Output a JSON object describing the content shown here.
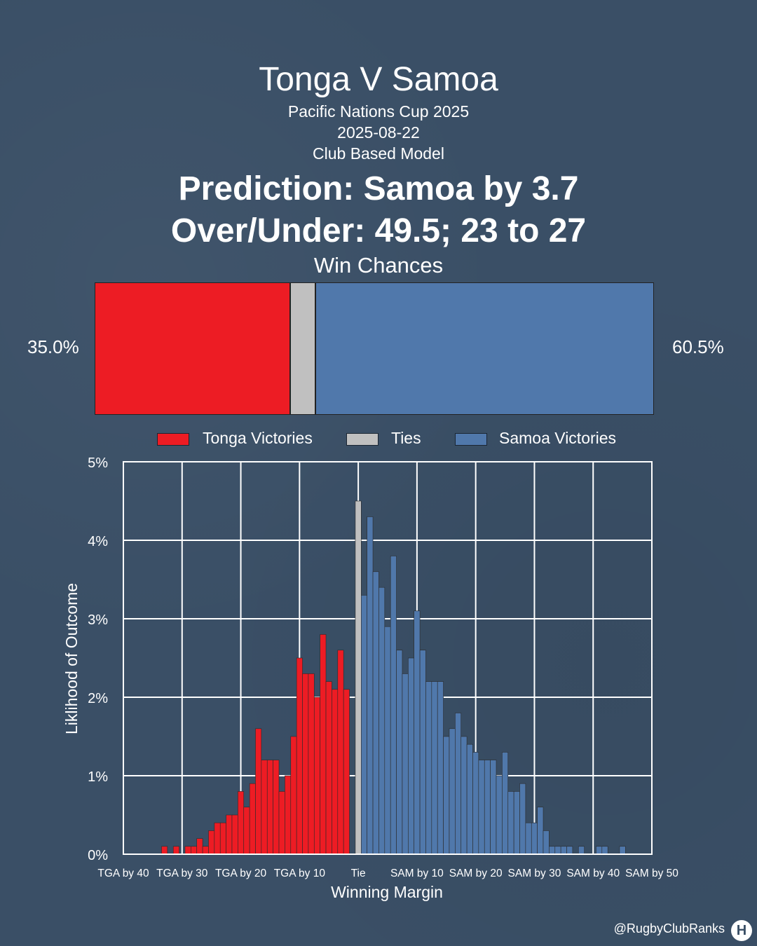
{
  "header": {
    "title": "Tonga V Samoa",
    "competition": "Pacific Nations Cup 2025",
    "date": "2025-08-22",
    "model": "Club Based Model",
    "prediction": "Prediction: Samoa by 3.7",
    "over_under": "Over/Under: 49.5; 23 to 27"
  },
  "win_chances": {
    "title": "Win Chances",
    "left_label": "35.0%",
    "right_label": "60.5%",
    "segments": [
      {
        "name": "Tonga Victories",
        "value": 35.0,
        "color": "#ed1c24"
      },
      {
        "name": "Ties",
        "value": 4.5,
        "color": "#c0c0c0"
      },
      {
        "name": "Samoa Victories",
        "value": 60.5,
        "color": "#5078ab"
      }
    ]
  },
  "legend": [
    {
      "label": "Tonga Victories",
      "color": "#ed1c24"
    },
    {
      "label": "Ties",
      "color": "#c0c0c0"
    },
    {
      "label": "Samoa Victories",
      "color": "#5078ab"
    }
  ],
  "chart_data": {
    "type": "bar",
    "xlabel": "Winning Margin",
    "ylabel": "Liklihood of Outcome",
    "xlim": [
      -40,
      50
    ],
    "ylim": [
      0,
      5
    ],
    "grid": true,
    "y_ticks": [
      "0%",
      "1%",
      "2%",
      "3%",
      "4%",
      "5%"
    ],
    "x_ticks": [
      {
        "x": -40,
        "label": "TGA by 40"
      },
      {
        "x": -30,
        "label": "TGA by 30"
      },
      {
        "x": -20,
        "label": "TGA by 20"
      },
      {
        "x": -10,
        "label": "TGA by 10"
      },
      {
        "x": 0,
        "label": "Tie"
      },
      {
        "x": 10,
        "label": "SAM by 10"
      },
      {
        "x": 20,
        "label": "SAM by 20"
      },
      {
        "x": 30,
        "label": "SAM by 30"
      },
      {
        "x": 40,
        "label": "SAM by 40"
      },
      {
        "x": 50,
        "label": "SAM by 50"
      }
    ],
    "series": [
      {
        "name": "Tonga Victories",
        "color": "#ed1c24",
        "x": [
          -33,
          -31,
          -29,
          -28,
          -27,
          -26,
          -25,
          -24,
          -23,
          -22,
          -21,
          -20,
          -19,
          -18,
          -17,
          -16,
          -15,
          -14,
          -13,
          -12,
          -11,
          -10,
          -9,
          -8,
          -7,
          -6,
          -5,
          -4,
          -3,
          -2,
          -1
        ],
        "values": [
          0.1,
          0.1,
          0.1,
          0.1,
          0.2,
          0.1,
          0.3,
          0.4,
          0.4,
          0.5,
          0.5,
          0.8,
          0.6,
          0.9,
          1.6,
          1.2,
          1.2,
          1.2,
          0.8,
          1.0,
          1.5,
          2.5,
          2.3,
          2.3,
          2.0,
          2.8,
          2.2,
          2.1,
          2.6,
          2.1,
          0.0
        ]
      },
      {
        "name": "Ties",
        "color": "#c0c0c0",
        "x": [
          0
        ],
        "values": [
          4.5
        ]
      },
      {
        "name": "Samoa Victories",
        "color": "#5078ab",
        "x": [
          1,
          2,
          3,
          4,
          5,
          6,
          7,
          8,
          9,
          10,
          11,
          12,
          13,
          14,
          15,
          16,
          17,
          18,
          19,
          20,
          21,
          22,
          23,
          24,
          25,
          26,
          27,
          28,
          29,
          30,
          31,
          32,
          33,
          34,
          35,
          36,
          37,
          38,
          39,
          40,
          41,
          42,
          43,
          44,
          45
        ],
        "values": [
          3.3,
          4.3,
          3.6,
          3.4,
          2.9,
          3.8,
          2.6,
          2.3,
          2.5,
          3.1,
          2.6,
          2.2,
          2.2,
          2.2,
          1.5,
          1.6,
          1.8,
          1.5,
          1.4,
          1.3,
          1.2,
          1.2,
          1.2,
          1.0,
          1.3,
          0.8,
          0.8,
          0.9,
          0.4,
          0.4,
          0.6,
          0.3,
          0.1,
          0.1,
          0.1,
          0.1,
          0.0,
          0.1,
          0.0,
          0.0,
          0.1,
          0.1,
          0.0,
          0.0,
          0.1
        ]
      }
    ]
  },
  "footer": {
    "credit": "@RugbyClubRanks",
    "logo_letter": "H"
  }
}
